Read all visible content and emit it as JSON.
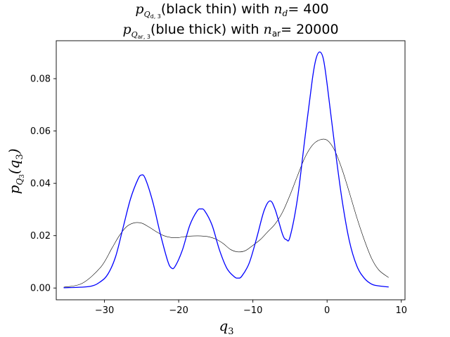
{
  "chart_data": {
    "type": "line",
    "title_line1": "(black thin) with",
    "title_line1_rhs": "= 400",
    "title_line2": "(blue thick) with",
    "title_line2_rhs": "= 20000",
    "xlabel": "q",
    "xlabel_sub": "3",
    "ylabel": "p",
    "ylabel_arg": "(q",
    "ylabel_sub": "3",
    "xlim": [
      -36.5,
      10.5
    ],
    "ylim": [
      -0.0045,
      0.0945
    ],
    "xticks": [
      -30,
      -20,
      -10,
      0,
      10
    ],
    "yticks": [
      0.0,
      0.02,
      0.04,
      0.06,
      0.08
    ],
    "xtick_labels": [
      "−30",
      "−20",
      "−10",
      "0",
      "10"
    ],
    "ytick_labels": [
      "0.00",
      "0.02",
      "0.04",
      "0.06",
      "0.08"
    ],
    "grid": false,
    "series": [
      {
        "color": "#000000",
        "linewidth": 0.6,
        "x": [
          -35.5,
          -33,
          -30.5,
          -29,
          -28,
          -27,
          -26,
          -25,
          -24,
          -23,
          -22,
          -21,
          -20,
          -19,
          -18,
          -17,
          -16,
          -15,
          -14,
          -13,
          -12,
          -11,
          -10,
          -9,
          -8,
          -7,
          -6,
          -5,
          -4,
          -3,
          -2,
          -1,
          0,
          1,
          2,
          3,
          4,
          5,
          6,
          7,
          8.3
        ],
        "y": [
          0.0003,
          0.0018,
          0.008,
          0.0152,
          0.02,
          0.0235,
          0.0249,
          0.0248,
          0.0233,
          0.0215,
          0.02,
          0.0193,
          0.0193,
          0.0197,
          0.0199,
          0.0199,
          0.0196,
          0.0187,
          0.017,
          0.0147,
          0.0138,
          0.0143,
          0.0163,
          0.0185,
          0.0215,
          0.0245,
          0.029,
          0.0355,
          0.0428,
          0.0498,
          0.0545,
          0.0566,
          0.0565,
          0.0527,
          0.0455,
          0.0365,
          0.027,
          0.0185,
          0.0113,
          0.0068,
          0.004
        ]
      },
      {
        "color": "#0000ff",
        "linewidth": 1.3,
        "x": [
          -35.5,
          -32,
          -30.5,
          -29.5,
          -28.5,
          -27.5,
          -26.5,
          -25.5,
          -25,
          -24.5,
          -23.5,
          -22.5,
          -21.5,
          -21,
          -20.5,
          -19.5,
          -18.5,
          -17.5,
          -17,
          -16.5,
          -15.5,
          -14.5,
          -13.5,
          -12.5,
          -12,
          -11.5,
          -10.5,
          -9.5,
          -8.5,
          -7.7,
          -7,
          -6,
          -5.5,
          -5,
          -4,
          -3,
          -2,
          -1.5,
          -1,
          -0.5,
          0,
          1,
          2,
          3,
          4,
          5,
          6,
          7,
          8.3
        ],
        "y": [
          0.0001,
          0.0006,
          0.0025,
          0.0055,
          0.012,
          0.023,
          0.034,
          0.0415,
          0.0432,
          0.0418,
          0.033,
          0.021,
          0.0105,
          0.0077,
          0.0082,
          0.0145,
          0.024,
          0.0295,
          0.0302,
          0.0295,
          0.024,
          0.0145,
          0.0075,
          0.0043,
          0.0038,
          0.0045,
          0.0095,
          0.019,
          0.0295,
          0.0333,
          0.03,
          0.0205,
          0.0185,
          0.0195,
          0.034,
          0.057,
          0.0795,
          0.0875,
          0.0902,
          0.0875,
          0.078,
          0.055,
          0.034,
          0.018,
          0.0085,
          0.0038,
          0.0015,
          0.0008,
          0.0004
        ]
      }
    ]
  }
}
